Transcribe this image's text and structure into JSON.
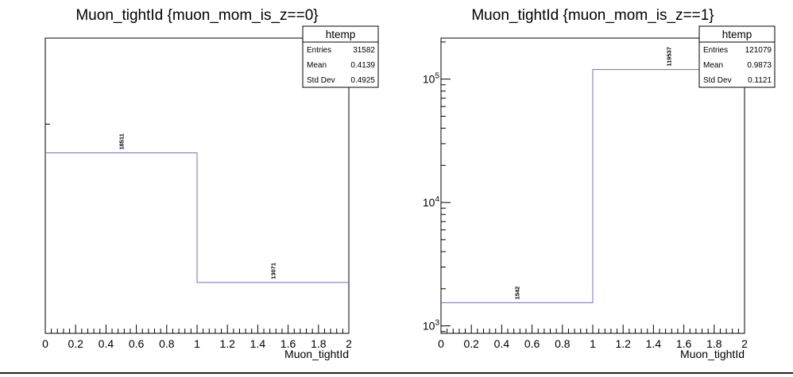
{
  "chart_data": [
    {
      "type": "histogram",
      "title": "Muon_tightId {muon_mom_is_z==0}",
      "xlabel": "Muon_tightId",
      "ylabel": "",
      "log_y": true,
      "grid": false,
      "xlim": [
        0,
        2
      ],
      "ylim": [
        11400,
        25200
      ],
      "x_ticks": [
        "0",
        "0.2",
        "0.4",
        "0.6",
        "0.8",
        "1",
        "1.2",
        "1.4",
        "1.6",
        "1.8",
        "2"
      ],
      "bins": [
        {
          "x0": 0,
          "x1": 1,
          "value": 18511,
          "label": "18511"
        },
        {
          "x0": 1,
          "x1": 2,
          "value": 13071,
          "label": "13071"
        }
      ],
      "line_color": "#7070b8",
      "stats": {
        "name": "htemp",
        "rows": [
          {
            "label": "Entries",
            "value": "31582"
          },
          {
            "label": "Mean",
            "value": "0.4139"
          },
          {
            "label": "Std Dev",
            "value": "0.4925"
          }
        ]
      }
    },
    {
      "type": "histogram",
      "title": "Muon_tightId {muon_mom_is_z==1}",
      "xlabel": "Muon_tightId",
      "ylabel": "",
      "log_y": true,
      "grid": false,
      "xlim": [
        0,
        2
      ],
      "ylim": [
        870,
        215000
      ],
      "x_ticks": [
        "0",
        "0.2",
        "0.4",
        "0.6",
        "0.8",
        "1",
        "1.2",
        "1.4",
        "1.6",
        "1.8",
        "2"
      ],
      "bins": [
        {
          "x0": 0,
          "x1": 1,
          "value": 1542,
          "label": "1542"
        },
        {
          "x0": 1,
          "x1": 2,
          "value": 119537,
          "label": "119537"
        }
      ],
      "line_color": "#7070b8",
      "stats": {
        "name": "htemp",
        "rows": [
          {
            "label": "Entries",
            "value": "121079"
          },
          {
            "label": "Mean",
            "value": "0.9873"
          },
          {
            "label": "Std Dev",
            "value": "0.1121"
          }
        ]
      }
    }
  ]
}
